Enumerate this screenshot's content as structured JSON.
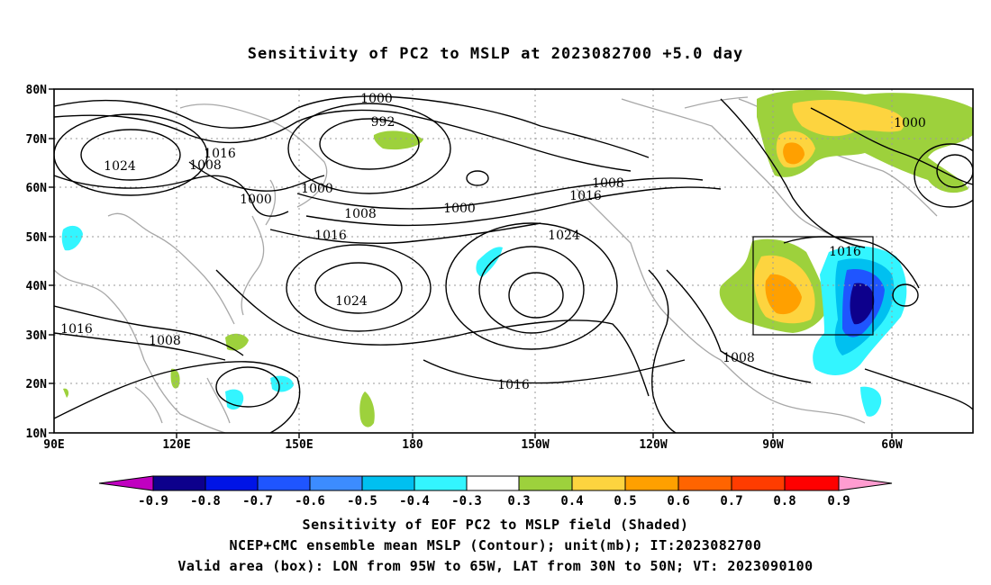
{
  "title": "Sensitivity of PC2 to MSLP at 2023082700 +5.0 day",
  "lat_labels": [
    "80N",
    "70N",
    "60N",
    "50N",
    "40N",
    "30N",
    "20N",
    "10N"
  ],
  "lon_labels": [
    "90E",
    "120E",
    "150E",
    "180",
    "150W",
    "120W",
    "90W",
    "60W"
  ],
  "contour_labels": [
    "1000",
    "992",
    "1000",
    "1008",
    "1000",
    "1024",
    "1016",
    "1008",
    "1016",
    "1000",
    "1008",
    "1024",
    "1016",
    "1024",
    "1016",
    "1008",
    "1016",
    "1008",
    "1016",
    "1000"
  ],
  "colorbar": {
    "labels": [
      "-0.9",
      "-0.8",
      "-0.7",
      "-0.6",
      "-0.5",
      "-0.4",
      "-0.3",
      "0.3",
      "0.4",
      "0.5",
      "0.6",
      "0.7",
      "0.8",
      "0.9"
    ],
    "colors": [
      "#0d008c",
      "#0014e6",
      "#1f55ff",
      "#3c8cff",
      "#00c0f0",
      "#33f5ff",
      "#ffffff",
      "#9dd13c",
      "#fdd43f",
      "#ffa000",
      "#ff6400",
      "#ff3c00",
      "#ff0000"
    ],
    "end_low": "#c000c0",
    "end_high": "#ff9cd0"
  },
  "caption": [
    "Sensitivity of EOF PC2 to MSLP field (Shaded)",
    "NCEP+CMC ensemble mean MSLP (Contour); unit(mb); IT:2023082700",
    "Valid area (box): LON from 95W to 65W, LAT from 30N to 50N; VT: 2023090100"
  ]
}
